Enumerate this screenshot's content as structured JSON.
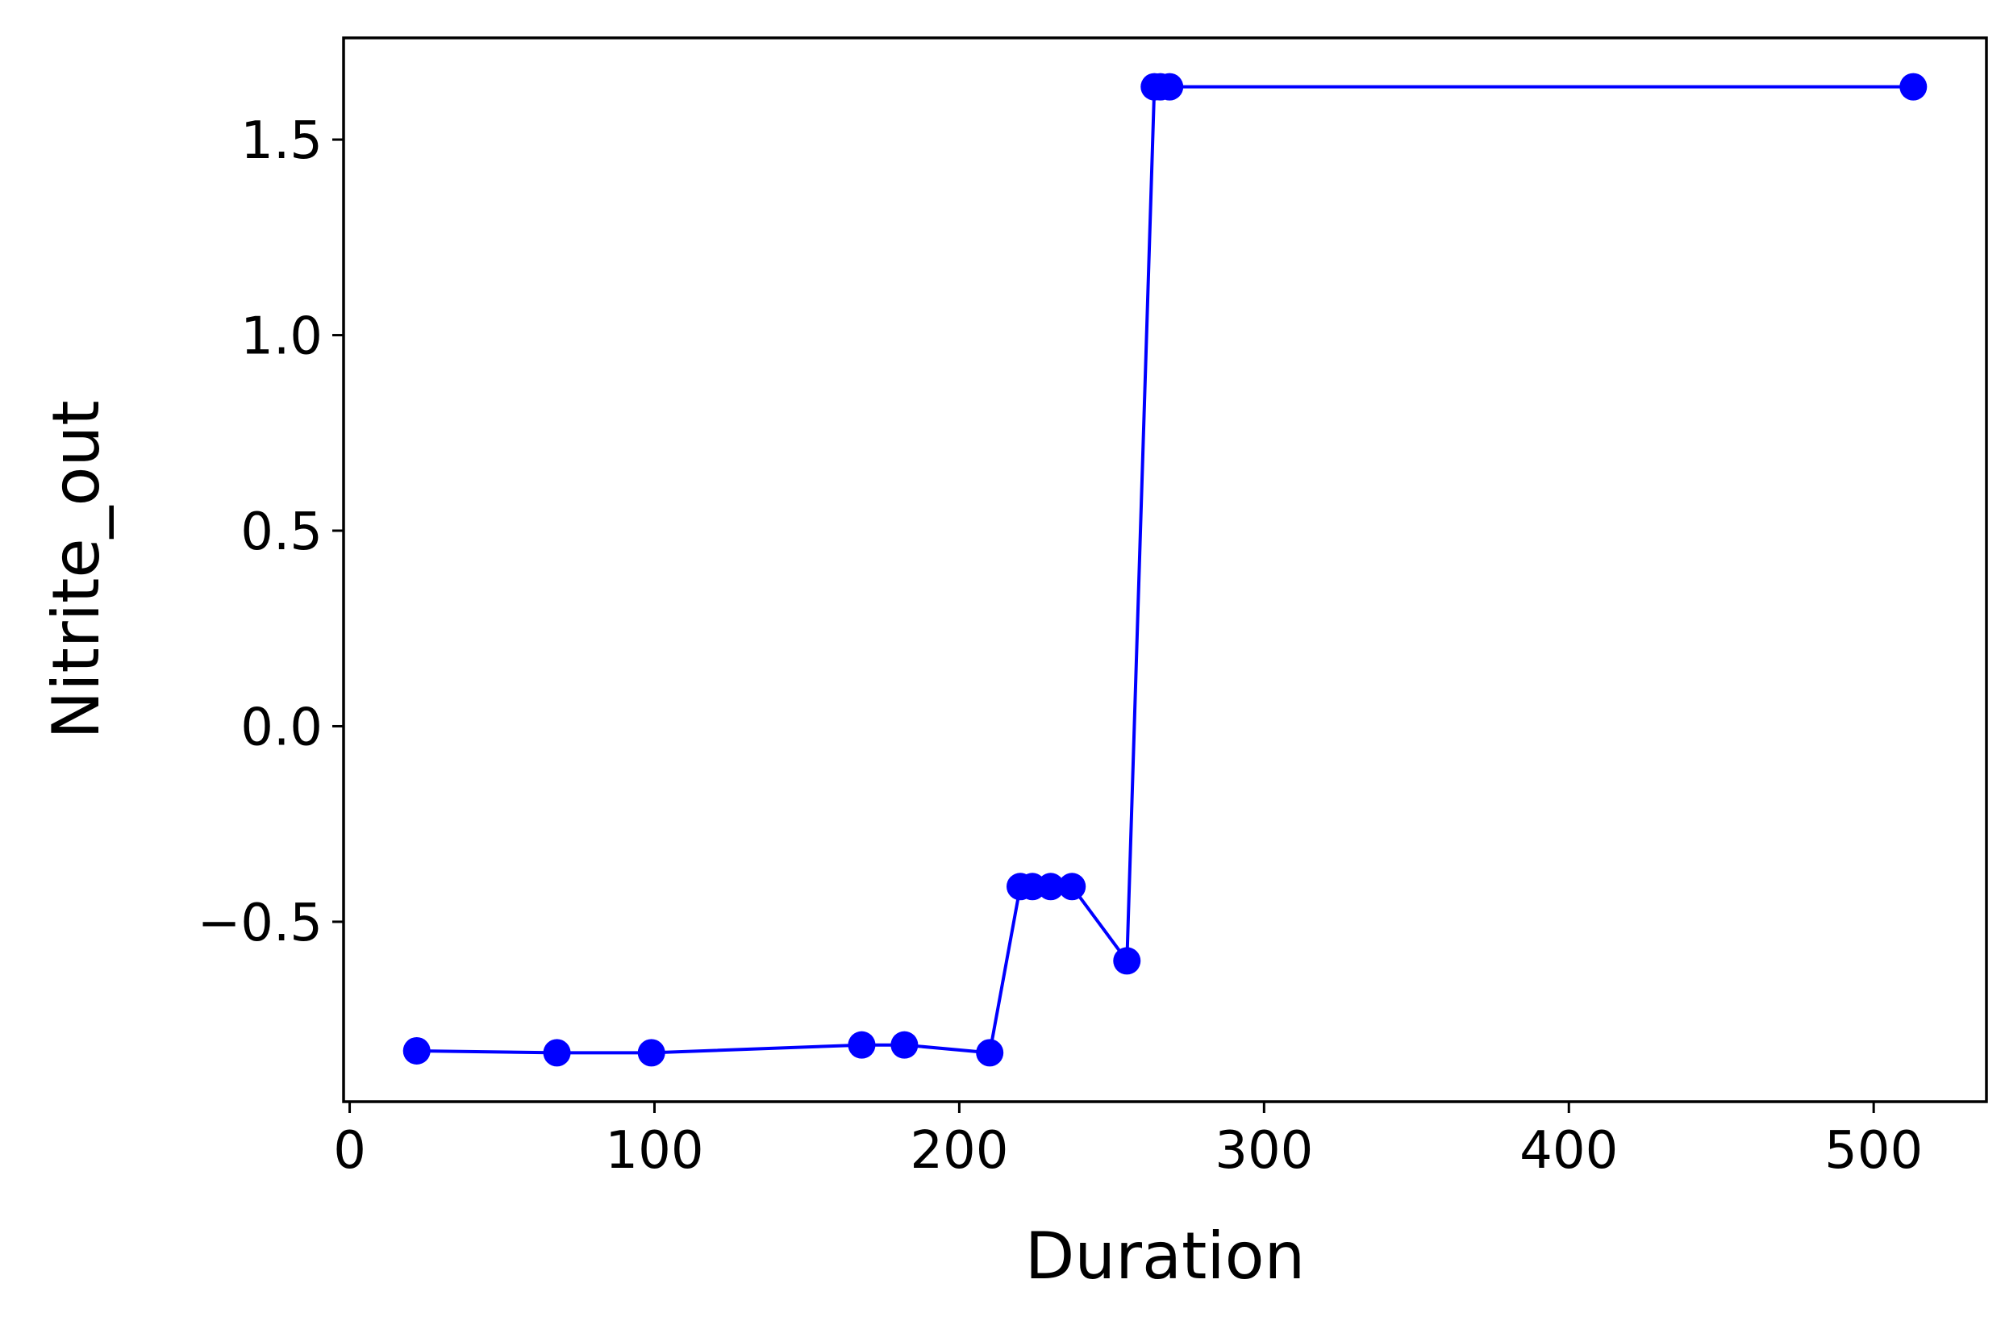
{
  "chart_data": {
    "type": "line",
    "title": "",
    "xlabel": "Duration",
    "ylabel": "Nitrite_out",
    "xlim": [
      -2,
      537
    ],
    "ylim": [
      -0.96,
      1.76
    ],
    "xticks": [
      {
        "value": 0,
        "label": "0"
      },
      {
        "value": 100,
        "label": "100"
      },
      {
        "value": 200,
        "label": "200"
      },
      {
        "value": 300,
        "label": "300"
      },
      {
        "value": 400,
        "label": "400"
      },
      {
        "value": 500,
        "label": "500"
      }
    ],
    "yticks": [
      {
        "value": -0.5,
        "label": "−0.5"
      },
      {
        "value": 0.0,
        "label": "0.0"
      },
      {
        "value": 0.5,
        "label": "0.5"
      },
      {
        "value": 1.0,
        "label": "1.0"
      },
      {
        "value": 1.5,
        "label": "1.5"
      }
    ],
    "grid": false,
    "legend": "none",
    "series": [
      {
        "color": "#0000ff",
        "marker": "circle",
        "points": [
          {
            "x": 22,
            "y": -0.83
          },
          {
            "x": 68,
            "y": -0.835
          },
          {
            "x": 99,
            "y": -0.835
          },
          {
            "x": 168,
            "y": -0.815
          },
          {
            "x": 182,
            "y": -0.815
          },
          {
            "x": 210,
            "y": -0.835
          },
          {
            "x": 220,
            "y": -0.41
          },
          {
            "x": 224,
            "y": -0.41
          },
          {
            "x": 230,
            "y": -0.41
          },
          {
            "x": 237,
            "y": -0.41
          },
          {
            "x": 255,
            "y": -0.6
          },
          {
            "x": 264,
            "y": 1.635
          },
          {
            "x": 266,
            "y": 1.635
          },
          {
            "x": 269,
            "y": 1.635
          },
          {
            "x": 513,
            "y": 1.635
          }
        ]
      }
    ]
  }
}
